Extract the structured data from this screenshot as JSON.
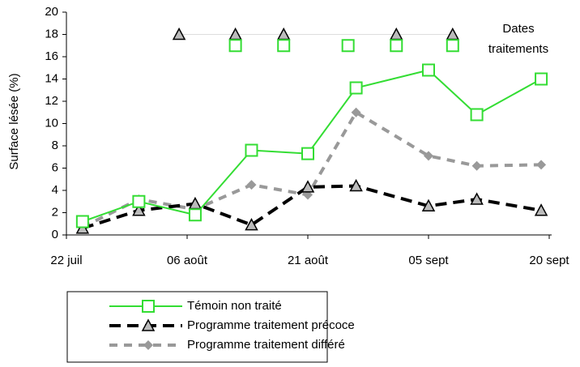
{
  "chart_data": {
    "type": "line",
    "ylabel": "Surface lésée (%)",
    "annotation": "Dates\ntraitements",
    "xlim": [
      0,
      60
    ],
    "xticks": [
      {
        "value": 0,
        "label": "22 juil"
      },
      {
        "value": 15,
        "label": "06 août"
      },
      {
        "value": 30,
        "label": "21 août"
      },
      {
        "value": 45,
        "label": "05 sept"
      },
      {
        "value": 60,
        "label": "20 sept"
      }
    ],
    "ylim": [
      0,
      20
    ],
    "yticks": [
      0,
      2,
      4,
      6,
      8,
      10,
      12,
      14,
      16,
      18,
      20
    ],
    "x": [
      2,
      9,
      16,
      23,
      30,
      36,
      45,
      51,
      59
    ],
    "series": [
      {
        "name": "Témoin non traité",
        "color": "#33dd33",
        "marker": "square",
        "dash": "none",
        "values": [
          1.2,
          3.0,
          1.8,
          7.6,
          7.3,
          13.2,
          14.8,
          10.8,
          14.0
        ]
      },
      {
        "name": "Programme traitement précoce",
        "color": "#000000",
        "marker": "triangle",
        "dash": "14 8",
        "values": [
          0.6,
          2.2,
          2.8,
          0.9,
          4.3,
          4.4,
          2.6,
          3.2,
          2.2
        ]
      },
      {
        "name": "Programme traitement différé",
        "color": "#999999",
        "marker": "diamond",
        "dash": "10 8",
        "values": [
          0.7,
          3.2,
          2.3,
          4.5,
          3.6,
          11.0,
          7.1,
          6.2,
          6.3
        ]
      }
    ],
    "treatment_series": [
      {
        "series": 1,
        "x": [
          14,
          21,
          27,
          41,
          48
        ],
        "values": [
          18,
          18,
          18,
          18,
          18
        ]
      },
      {
        "series": 0,
        "x": [
          21,
          27,
          35,
          41,
          48
        ],
        "values": [
          17,
          17,
          17,
          17,
          17
        ]
      }
    ]
  }
}
